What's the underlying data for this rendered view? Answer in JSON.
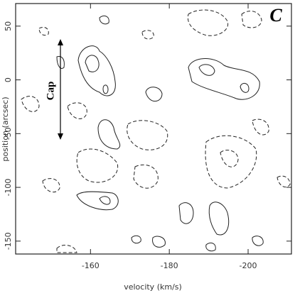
{
  "chart_data": {
    "type": "contour",
    "panel_label": "C",
    "annotation": "Cap",
    "x_label": "velocity (km/s)",
    "y_label": "position (arcsec)",
    "xlim": [
      -141,
      -211
    ],
    "xticks": [
      -160,
      -180,
      -200
    ],
    "ylim": [
      -162,
      71
    ],
    "yticks": [
      50,
      0,
      -50,
      -100,
      -150
    ]
  }
}
